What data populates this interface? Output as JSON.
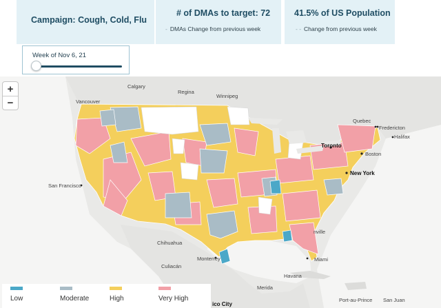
{
  "header": {
    "campaign": {
      "label": "Campaign:",
      "value": "Cough, Cold, Flu"
    },
    "dma": {
      "title": "# of DMAs to target:",
      "count": "72",
      "sub_dash": "-",
      "sub_text": "DMAs  Change from previous week"
    },
    "population": {
      "title": "41.5%  of US Population",
      "sub_dash": "- -",
      "sub_text": "Change from previous week"
    }
  },
  "week_selector": {
    "label": "Week of Nov 6, 21",
    "position_fraction": 0.0
  },
  "map": {
    "zoom_in_label": "+",
    "zoom_out_label": "−",
    "places": {
      "calgary": "Calgary",
      "regina": "Regina",
      "winnipeg": "Winnipeg",
      "vancouver": "Vancouver",
      "quebec": "Quebec",
      "fredericton": "Fredericton",
      "halifax": "Halifax",
      "toronto": "Toronto",
      "boston": "Boston",
      "new_york": "New York",
      "san_francisco": "San Francisco",
      "chihuahua": "Chihuahua",
      "monterrey": "Monterrey",
      "culiacan": "Culiacán",
      "havana": "Havana",
      "miami": "Miami",
      "merida": "Merida",
      "port_au_prince": "Port-au-Prince",
      "san_juan": "San Juan",
      "mexico_city": "ico City",
      "jacksonville": "nville"
    }
  },
  "legend": {
    "low": {
      "label": "Low",
      "color": "#4ba8c8"
    },
    "moderate": {
      "label": "Moderate",
      "color": "#a9bcc6"
    },
    "high": {
      "label": "High",
      "color": "#f4cf5c"
    },
    "very_high": {
      "label": "Very High",
      "color": "#f2a0a7"
    }
  }
}
